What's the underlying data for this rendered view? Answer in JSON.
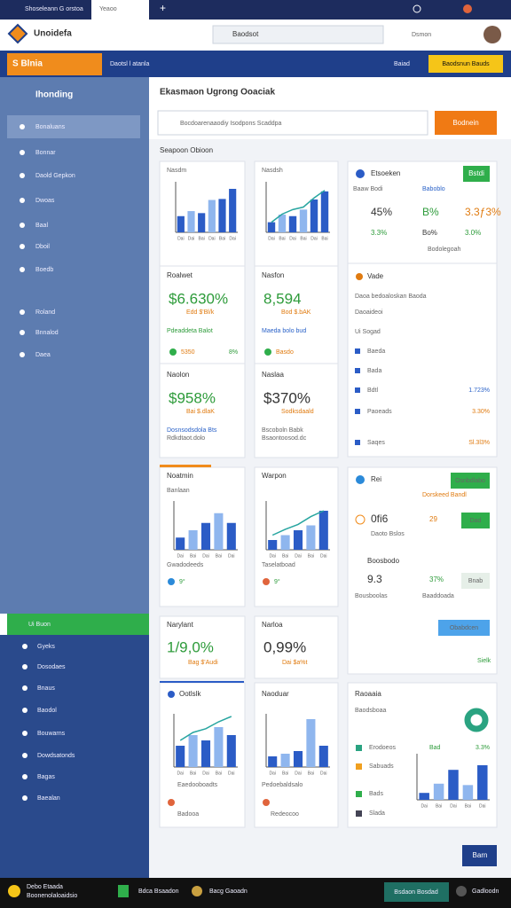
{
  "browser": {
    "tab": "Shoseleann G orstoa",
    "tab2": "Yeaoo",
    "plus": "+"
  },
  "app": {
    "logo": "Unoidefa",
    "search": "Baodsot",
    "account": "Dsmon"
  },
  "toolbar": {
    "badge": "S Blnia",
    "crumb": "Daotsl l atanla",
    "link": "Baiad",
    "button": "Baodsnun Bauds"
  },
  "sidebar": {
    "heading": "Ihonding",
    "items": [
      "Bonaluans",
      "Bonnar",
      "Daold Gepkon",
      "Dwoas",
      "Baal",
      "Dboil",
      "Boedb",
      "Roland",
      "Bnnalod",
      "Daea"
    ],
    "section": "Ui Buon",
    "section_items": [
      "Gyeks",
      "Dosodaes",
      "Bnaus",
      "Baodol",
      "Bouwarns",
      "Dowdsatonds",
      "Bagas",
      "Baealan"
    ]
  },
  "panel": {
    "title": "Ekasmaon Ugrong Ooaciak",
    "search": "Bocdoarenaaodiy Isodpons Scaddpa",
    "button": "Bodnein",
    "section": "Seapoon Obioon",
    "bottom_button": "Barn"
  },
  "palette": [
    "#2b5cc6",
    "#8fb6ee"
  ],
  "line_color": "#27a5a0",
  "c1": {
    "title": "Nasdm",
    "chart": {
      "values": [
        3.2,
        4.2,
        3.8,
        6.4,
        6.6,
        8.6
      ],
      "ylim": [
        0,
        10
      ],
      "categories": [
        "Dai",
        "Dai",
        "Bai",
        "Dai",
        "Bai",
        "Dai"
      ]
    }
  },
  "c2": {
    "title": "Nasdsh",
    "chart": {
      "values": [
        2,
        3.5,
        3.2,
        4.5,
        6.5,
        8.1
      ],
      "line": [
        2,
        3.6,
        4.5,
        5,
        6.8,
        8.3
      ],
      "ylim": [
        0,
        10
      ],
      "categories": [
        "Dai",
        "Bai",
        "Dai",
        "Bai",
        "Dai",
        "Bai"
      ]
    }
  },
  "m1": {
    "title": "Roalwet",
    "value": "$6.630%",
    "sub": "Edd $'Bl/k",
    "note": "Pdeaddeta Balot",
    "foot": "5350",
    "pct": "8%"
  },
  "m2": {
    "title": "Nasfon",
    "value": "8,594",
    "sub": "Bod $.bAK",
    "note": "Maeda bolo bud",
    "foot": "Basdo"
  },
  "m3": {
    "title": "Naolon",
    "value": "$958%",
    "sub": "Bai $.dlaK",
    "note": "Dosnsodsdola Bts",
    "foot": "Rdkdtaot.dolo"
  },
  "m4": {
    "title": "Naslaa",
    "value": "$370%",
    "sub": "Sodksdaald",
    "note": "Bscoboln Babk",
    "foot": "Bsaontoosod.dc"
  },
  "k": {
    "title": "Etsoeken",
    "button": "Bstdi",
    "sub": "Baaw Bodi",
    "sub2": "Baboblo",
    "r1": [
      "45%",
      "B%",
      "3.3ƒ3%"
    ],
    "r2": [
      "3.3%",
      "Bo%",
      "3.0%"
    ],
    "foot": "Bodolegoah"
  },
  "list": {
    "title": "Vade",
    "sub": "Daoa bedoaloskan Baoda",
    "items": [
      "Daoaideoi",
      "Ui Sogad",
      "Baeda",
      "Bada",
      "Bdtl",
      "Paoeads",
      "Saqes"
    ],
    "vals": [
      "1.723%",
      "3.30%",
      "Sl.3l3%"
    ]
  },
  "c4": {
    "title": "Noatmin",
    "sub": "Banlaan",
    "foot": "Gwadodeeds",
    "pct": "9°",
    "chart": {
      "values": [
        2.5,
        4,
        5.5,
        7.5,
        5.5
      ],
      "ylim": [
        0,
        10
      ],
      "categories": [
        "Dai",
        "Bai",
        "Dai",
        "Bai",
        "Dai"
      ]
    }
  },
  "c5": {
    "title": "Warpon",
    "foot": "Taselatboad",
    "pct": "9°",
    "chart": {
      "values": [
        2,
        3,
        4,
        5,
        8
      ],
      "line": [
        3,
        4.2,
        5.2,
        6.8,
        8
      ],
      "ylim": [
        0,
        10
      ],
      "categories": [
        "Dai",
        "Bai",
        "Dai",
        "Bai",
        "Dai"
      ]
    }
  },
  "r": {
    "title": "Rei",
    "button": "Osnbdlabo",
    "sub": "Dorskeed Bandl",
    "v1": "0fi6",
    "p1": "29",
    "b1": "Dad",
    "s1": "Daoto Bslos",
    "h2": "Boosbodo",
    "v2": "9.3",
    "p2": "37%",
    "b2": "Bnab",
    "s2": "Bousboolas",
    "s3": "Baaddoada",
    "b3": "Obabdcen",
    "foot": "Sielk"
  },
  "n1": {
    "title": "Narylant",
    "value": "1/9,0%",
    "sub": "Bag $'Audi"
  },
  "n2": {
    "title": "Narloa",
    "value": "0,99%",
    "sub": "Dai $a%t"
  },
  "c6": {
    "title": "Ootlslk",
    "foot": "Eaedooboadts",
    "pct": "Badooa",
    "chart": {
      "values": [
        4,
        6,
        5,
        7.5,
        6
      ],
      "line": [
        5,
        6.5,
        7.2,
        8.5,
        9.5
      ],
      "ylim": [
        0,
        10
      ],
      "categories": [
        "Dai",
        "Bai",
        "Dai",
        "Bai",
        "Dai"
      ]
    }
  },
  "c7": {
    "title": "Naoduar",
    "foot": "Pedoebaldsalo",
    "pct": "Redeocoo",
    "chart": {
      "values": [
        2,
        2.5,
        3,
        9,
        4
      ],
      "ylim": [
        0,
        10
      ],
      "categories": [
        "Dai",
        "Bai",
        "Dai",
        "Bai",
        "Dai"
      ]
    }
  },
  "c8": {
    "title": "Raoaaia",
    "sub": "Baodsboaa",
    "items": [
      "Erodoeos",
      "Sabuads",
      "Bads",
      "Slada"
    ],
    "a": "Bad",
    "b": "3.3%",
    "chart": {
      "values": [
        1.5,
        3.5,
        6.5,
        3.2,
        7.5
      ],
      "ylim": [
        0,
        10
      ],
      "categories": [
        "Dai",
        "Bai",
        "Dai",
        "Bai",
        "Dai"
      ]
    }
  },
  "taskbar": {
    "t1": "Debo Etaada",
    "t2": "Boonenolaloaidsio",
    "t3": "Bdca Bsaadon",
    "t4": "Bacg Gaoadn",
    "t5": "Bsdaon Bosdad",
    "t6": "Gadloodn"
  }
}
